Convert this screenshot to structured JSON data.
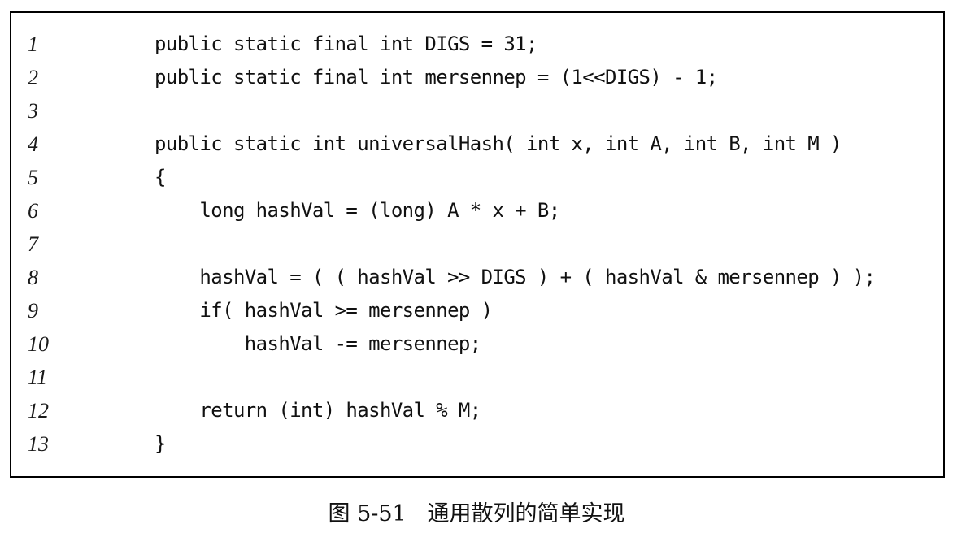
{
  "code": {
    "lines": [
      {
        "number": "1",
        "text": "public static final int DIGS = 31;"
      },
      {
        "number": "2",
        "text": "public static final int mersennep = (1<<DIGS) - 1;"
      },
      {
        "number": "3",
        "text": ""
      },
      {
        "number": "4",
        "text": "public static int universalHash( int x, int A, int B, int M )"
      },
      {
        "number": "5",
        "text": "{"
      },
      {
        "number": "6",
        "text": "    long hashVal = (long) A * x + B;"
      },
      {
        "number": "7",
        "text": ""
      },
      {
        "number": "8",
        "text": "    hashVal = ( ( hashVal >> DIGS ) + ( hashVal & mersennep ) );"
      },
      {
        "number": "9",
        "text": "    if( hashVal >= mersennep )"
      },
      {
        "number": "10",
        "text": "        hashVal -= mersennep;"
      },
      {
        "number": "11",
        "text": ""
      },
      {
        "number": "12",
        "text": "    return (int) hashVal % M;"
      },
      {
        "number": "13",
        "text": "}"
      }
    ]
  },
  "caption": {
    "text": "图 5-51   通用散列的简单实现"
  }
}
